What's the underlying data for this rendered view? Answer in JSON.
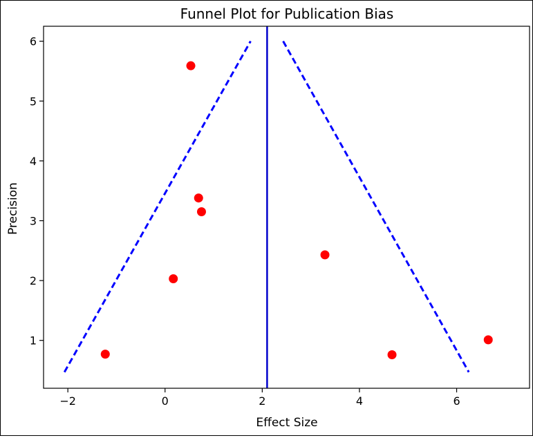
{
  "chart_data": {
    "type": "scatter",
    "title": "Funnel Plot for Publication Bias",
    "xlabel": "Effect Size",
    "ylabel": "Precision",
    "xlim": [
      -2.5,
      7.5
    ],
    "ylim": [
      0.2,
      6.25
    ],
    "x_ticks": [
      -2,
      0,
      2,
      4,
      6
    ],
    "y_ticks": [
      1,
      2,
      3,
      4,
      5,
      6
    ],
    "grid": false,
    "legend": "none",
    "points": [
      {
        "x": 0.53,
        "y": 5.59
      },
      {
        "x": 0.69,
        "y": 3.38
      },
      {
        "x": 0.75,
        "y": 3.15
      },
      {
        "x": 0.17,
        "y": 2.03
      },
      {
        "x": -1.23,
        "y": 0.77
      },
      {
        "x": 3.29,
        "y": 2.43
      },
      {
        "x": 4.67,
        "y": 0.76
      },
      {
        "x": 6.65,
        "y": 1.01
      }
    ],
    "pooled_effect": 2.1,
    "funnel_left": [
      {
        "x": -2.07,
        "y": 0.47
      },
      {
        "x": 1.76,
        "y": 6.0
      }
    ],
    "funnel_right": [
      {
        "x": 2.43,
        "y": 6.0
      },
      {
        "x": 6.25,
        "y": 0.47
      }
    ],
    "colors": {
      "points": "#ff0000",
      "pooled_line": "#0000cc",
      "funnel": "#0000ff"
    }
  }
}
